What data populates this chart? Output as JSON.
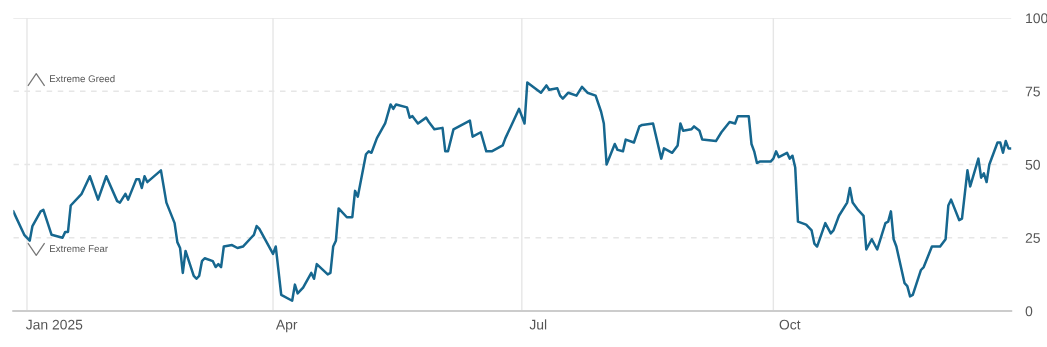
{
  "chart_data": {
    "type": "line",
    "annotations": [
      "Extreme Greed",
      "Extreme Fear"
    ],
    "x": [
      "2024-12-27",
      "2024-12-31",
      "2025-01-02",
      "2025-01-03",
      "2025-01-06",
      "2025-01-07",
      "2025-01-10",
      "2025-01-14",
      "2025-01-15",
      "2025-01-16",
      "2025-01-17",
      "2025-01-21",
      "2025-01-24",
      "2025-01-27",
      "2025-01-30",
      "2025-02-03",
      "2025-02-04",
      "2025-02-06",
      "2025-02-07",
      "2025-02-10",
      "2025-02-11",
      "2025-02-12",
      "2025-02-13",
      "2025-02-14",
      "2025-02-19",
      "2025-02-21",
      "2025-02-24",
      "2025-02-25",
      "2025-02-26",
      "2025-02-27",
      "2025-02-28",
      "2025-03-03",
      "2025-03-04",
      "2025-03-05",
      "2025-03-06",
      "2025-03-07",
      "2025-03-10",
      "2025-03-11",
      "2025-03-12",
      "2025-03-13",
      "2025-03-14",
      "2025-03-17",
      "2025-03-19",
      "2025-03-21",
      "2025-03-24",
      "2025-03-25",
      "2025-03-26",
      "2025-03-27",
      "2025-04-01",
      "2025-04-02",
      "2025-04-04",
      "2025-04-08",
      "2025-04-09",
      "2025-04-10",
      "2025-04-12",
      "2025-04-15",
      "2025-04-16",
      "2025-04-17",
      "2025-04-21",
      "2025-04-22",
      "2025-04-23",
      "2025-04-24",
      "2025-04-25",
      "2025-04-28",
      "2025-04-30",
      "2025-05-01",
      "2025-05-02",
      "2025-05-05",
      "2025-05-06",
      "2025-05-07",
      "2025-05-09",
      "2025-05-12",
      "2025-05-14",
      "2025-05-15",
      "2025-05-16",
      "2025-05-20",
      "2025-05-21",
      "2025-05-22",
      "2025-05-24",
      "2025-05-27",
      "2025-05-28",
      "2025-05-30",
      "2025-06-02",
      "2025-06-03",
      "2025-06-04",
      "2025-06-06",
      "2025-06-12",
      "2025-06-13",
      "2025-06-16",
      "2025-06-18",
      "2025-06-20",
      "2025-06-24",
      "2025-06-25",
      "2025-06-27",
      "2025-06-30",
      "2025-07-02",
      "2025-07-03",
      "2025-07-08",
      "2025-07-10",
      "2025-07-11",
      "2025-07-14",
      "2025-07-15",
      "2025-07-16",
      "2025-07-18",
      "2025-07-21",
      "2025-07-23",
      "2025-07-25",
      "2025-07-28",
      "2025-07-30",
      "2025-07-31",
      "2025-08-01",
      "2025-08-04",
      "2025-08-05",
      "2025-08-07",
      "2025-08-08",
      "2025-08-11",
      "2025-08-13",
      "2025-08-14",
      "2025-08-18",
      "2025-08-21",
      "2025-08-22",
      "2025-08-25",
      "2025-08-27",
      "2025-08-28",
      "2025-08-29",
      "2025-09-01",
      "2025-09-02",
      "2025-09-04",
      "2025-09-05",
      "2025-09-10",
      "2025-09-12",
      "2025-09-15",
      "2025-09-17",
      "2025-09-18",
      "2025-09-22",
      "2025-09-23",
      "2025-09-24",
      "2025-09-25",
      "2025-09-26",
      "2025-09-30",
      "2025-10-01",
      "2025-10-02",
      "2025-10-03",
      "2025-10-06",
      "2025-10-07",
      "2025-10-08",
      "2025-10-09",
      "2025-10-10",
      "2025-10-13",
      "2025-10-15",
      "2025-10-16",
      "2025-10-17",
      "2025-10-20",
      "2025-10-22",
      "2025-10-23",
      "2025-10-25",
      "2025-10-28",
      "2025-10-29",
      "2025-10-30",
      "2025-11-01",
      "2025-11-03",
      "2025-11-04",
      "2025-11-06",
      "2025-11-08",
      "2025-11-11",
      "2025-11-12",
      "2025-11-13",
      "2025-11-14",
      "2025-11-15",
      "2025-11-18",
      "2025-11-19",
      "2025-11-20",
      "2025-11-21",
      "2025-11-24",
      "2025-11-25",
      "2025-11-28",
      "2025-12-01",
      "2025-12-03",
      "2025-12-04",
      "2025-12-05",
      "2025-12-08",
      "2025-12-09",
      "2025-12-11",
      "2025-12-12",
      "2025-12-15",
      "2025-12-16",
      "2025-12-17",
      "2025-12-18",
      "2025-12-19",
      "2025-12-22",
      "2025-12-23",
      "2025-12-24",
      "2025-12-25",
      "2025-12-26",
      "2025-12-27"
    ],
    "series": [
      {
        "color": "#16678f",
        "values": [
          34,
          26,
          24,
          29,
          34,
          34.5,
          26,
          25,
          27,
          27,
          36,
          40,
          46,
          38,
          46,
          37.5,
          37,
          40,
          38,
          45,
          45,
          42,
          46,
          44,
          48,
          37,
          30,
          23.5,
          21.5,
          13,
          20.5,
          12,
          11,
          12,
          17,
          18,
          17,
          15,
          16,
          15,
          22,
          22.5,
          21.5,
          22,
          25,
          26,
          29,
          28,
          19.5,
          22,
          5.5,
          3.5,
          9,
          6,
          8,
          13,
          11,
          16,
          12.5,
          13,
          22,
          24,
          35,
          32,
          32,
          41,
          39,
          53.5,
          54.5,
          54,
          59,
          64,
          70.5,
          69,
          70.5,
          69.5,
          66,
          66.5,
          64,
          66,
          64.5,
          62,
          62.5,
          54.5,
          54.5,
          62,
          65,
          59.5,
          61,
          54.5,
          54.5,
          56.5,
          59,
          63,
          69,
          64,
          78,
          74.5,
          77,
          75.5,
          76,
          73.5,
          72.5,
          74.5,
          73.5,
          76.5,
          74.5,
          73.5,
          68,
          64,
          50,
          57,
          55,
          54.5,
          58.5,
          57.5,
          63,
          63.5,
          64,
          52,
          55.5,
          54,
          56.5,
          64,
          61.5,
          62,
          63,
          61.5,
          58.5,
          58,
          61,
          64.5,
          64,
          66.5,
          66.5,
          57,
          54.5,
          50.5,
          51,
          51,
          52,
          54.5,
          52.5,
          54,
          52,
          53,
          49,
          30.5,
          29.5,
          27.5,
          23,
          22,
          30,
          26.5,
          27.5,
          32.5,
          37,
          42,
          37,
          34.5,
          32.5,
          21,
          24.5,
          21,
          30,
          30.5,
          34,
          24.5,
          22,
          9.5,
          8.5,
          5,
          5.5,
          14,
          15,
          22,
          22,
          24.5,
          36,
          38,
          31,
          31.5,
          48,
          42.5,
          52,
          45.5,
          47,
          44,
          50,
          57.5,
          57.5,
          54,
          58,
          55.5,
          55.5
        ]
      }
    ],
    "xlim": [
      "2024-12-27",
      "2025-12-27"
    ],
    "xticks": [
      {
        "value": "2025-01-11",
        "label": "Jan 2025"
      },
      {
        "value": "2025-04-06",
        "label": "Apr"
      },
      {
        "value": "2025-07-07",
        "label": "Jul"
      },
      {
        "value": "2025-10-07",
        "label": "Oct"
      }
    ],
    "ref_lines": [
      {
        "axis": "x",
        "value": "2025-01-01",
        "color": "#e6e6e6"
      },
      {
        "axis": "x",
        "value": "2025-04-01",
        "color": "#e6e6e6"
      },
      {
        "axis": "x",
        "value": "2025-07-01",
        "color": "#e6e6e6"
      },
      {
        "axis": "x",
        "value": "2025-10-01",
        "color": "#e6e6e6"
      }
    ],
    "ylim": [
      0,
      100
    ],
    "yticks": [
      0,
      25,
      50,
      75,
      100
    ],
    "grid": "y",
    "legend": false,
    "marker": "none",
    "line_style": "solid"
  }
}
